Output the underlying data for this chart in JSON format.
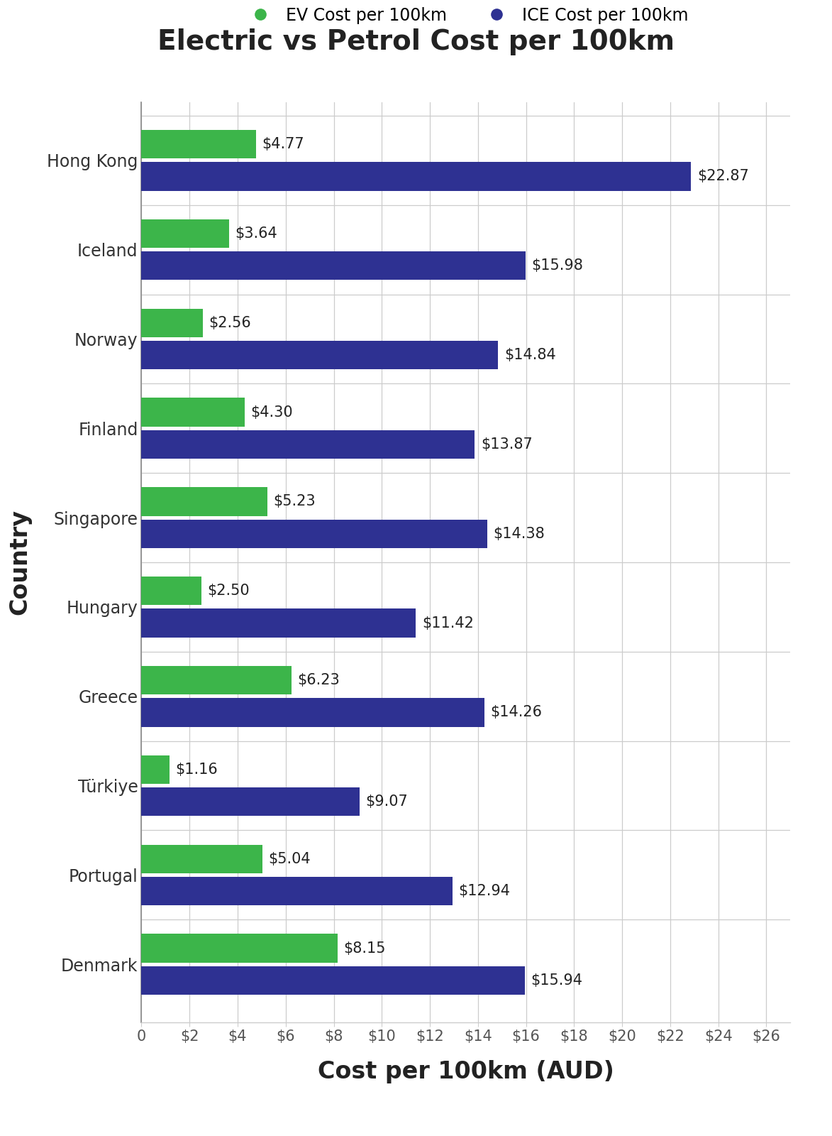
{
  "title": "Electric vs Petrol Cost per 100km",
  "xlabel": "Cost per 100km (AUD)",
  "ylabel": "Country",
  "legend_ev": "EV Cost per 100km",
  "legend_ice": "ICE Cost per 100km",
  "countries": [
    "Hong Kong",
    "Iceland",
    "Norway",
    "Finland",
    "Singapore",
    "Hungary",
    "Greece",
    "Türkiye",
    "Portugal",
    "Denmark"
  ],
  "ev_costs": [
    4.77,
    3.64,
    2.56,
    4.3,
    5.23,
    2.5,
    6.23,
    1.16,
    5.04,
    8.15
  ],
  "ice_costs": [
    22.87,
    15.98,
    14.84,
    13.87,
    14.38,
    11.42,
    14.26,
    9.07,
    12.94,
    15.94
  ],
  "ev_color": "#3cb54a",
  "ice_color": "#2e3192",
  "bg_color": "#ffffff",
  "xlim": [
    0,
    27
  ],
  "xticks": [
    0,
    2,
    4,
    6,
    8,
    10,
    12,
    14,
    16,
    18,
    20,
    22,
    24,
    26
  ],
  "xtick_labels": [
    "0",
    "$2",
    "$4",
    "$6",
    "$8",
    "$10",
    "$12",
    "$14",
    "$16",
    "$18",
    "$20",
    "$22",
    "$24",
    "$26"
  ],
  "bar_height": 0.32,
  "title_fontsize": 28,
  "label_fontsize": 20,
  "tick_fontsize": 15,
  "legend_fontsize": 17,
  "annotation_fontsize": 15,
  "separator_color": "#cccccc",
  "country_label_fontsize": 17
}
